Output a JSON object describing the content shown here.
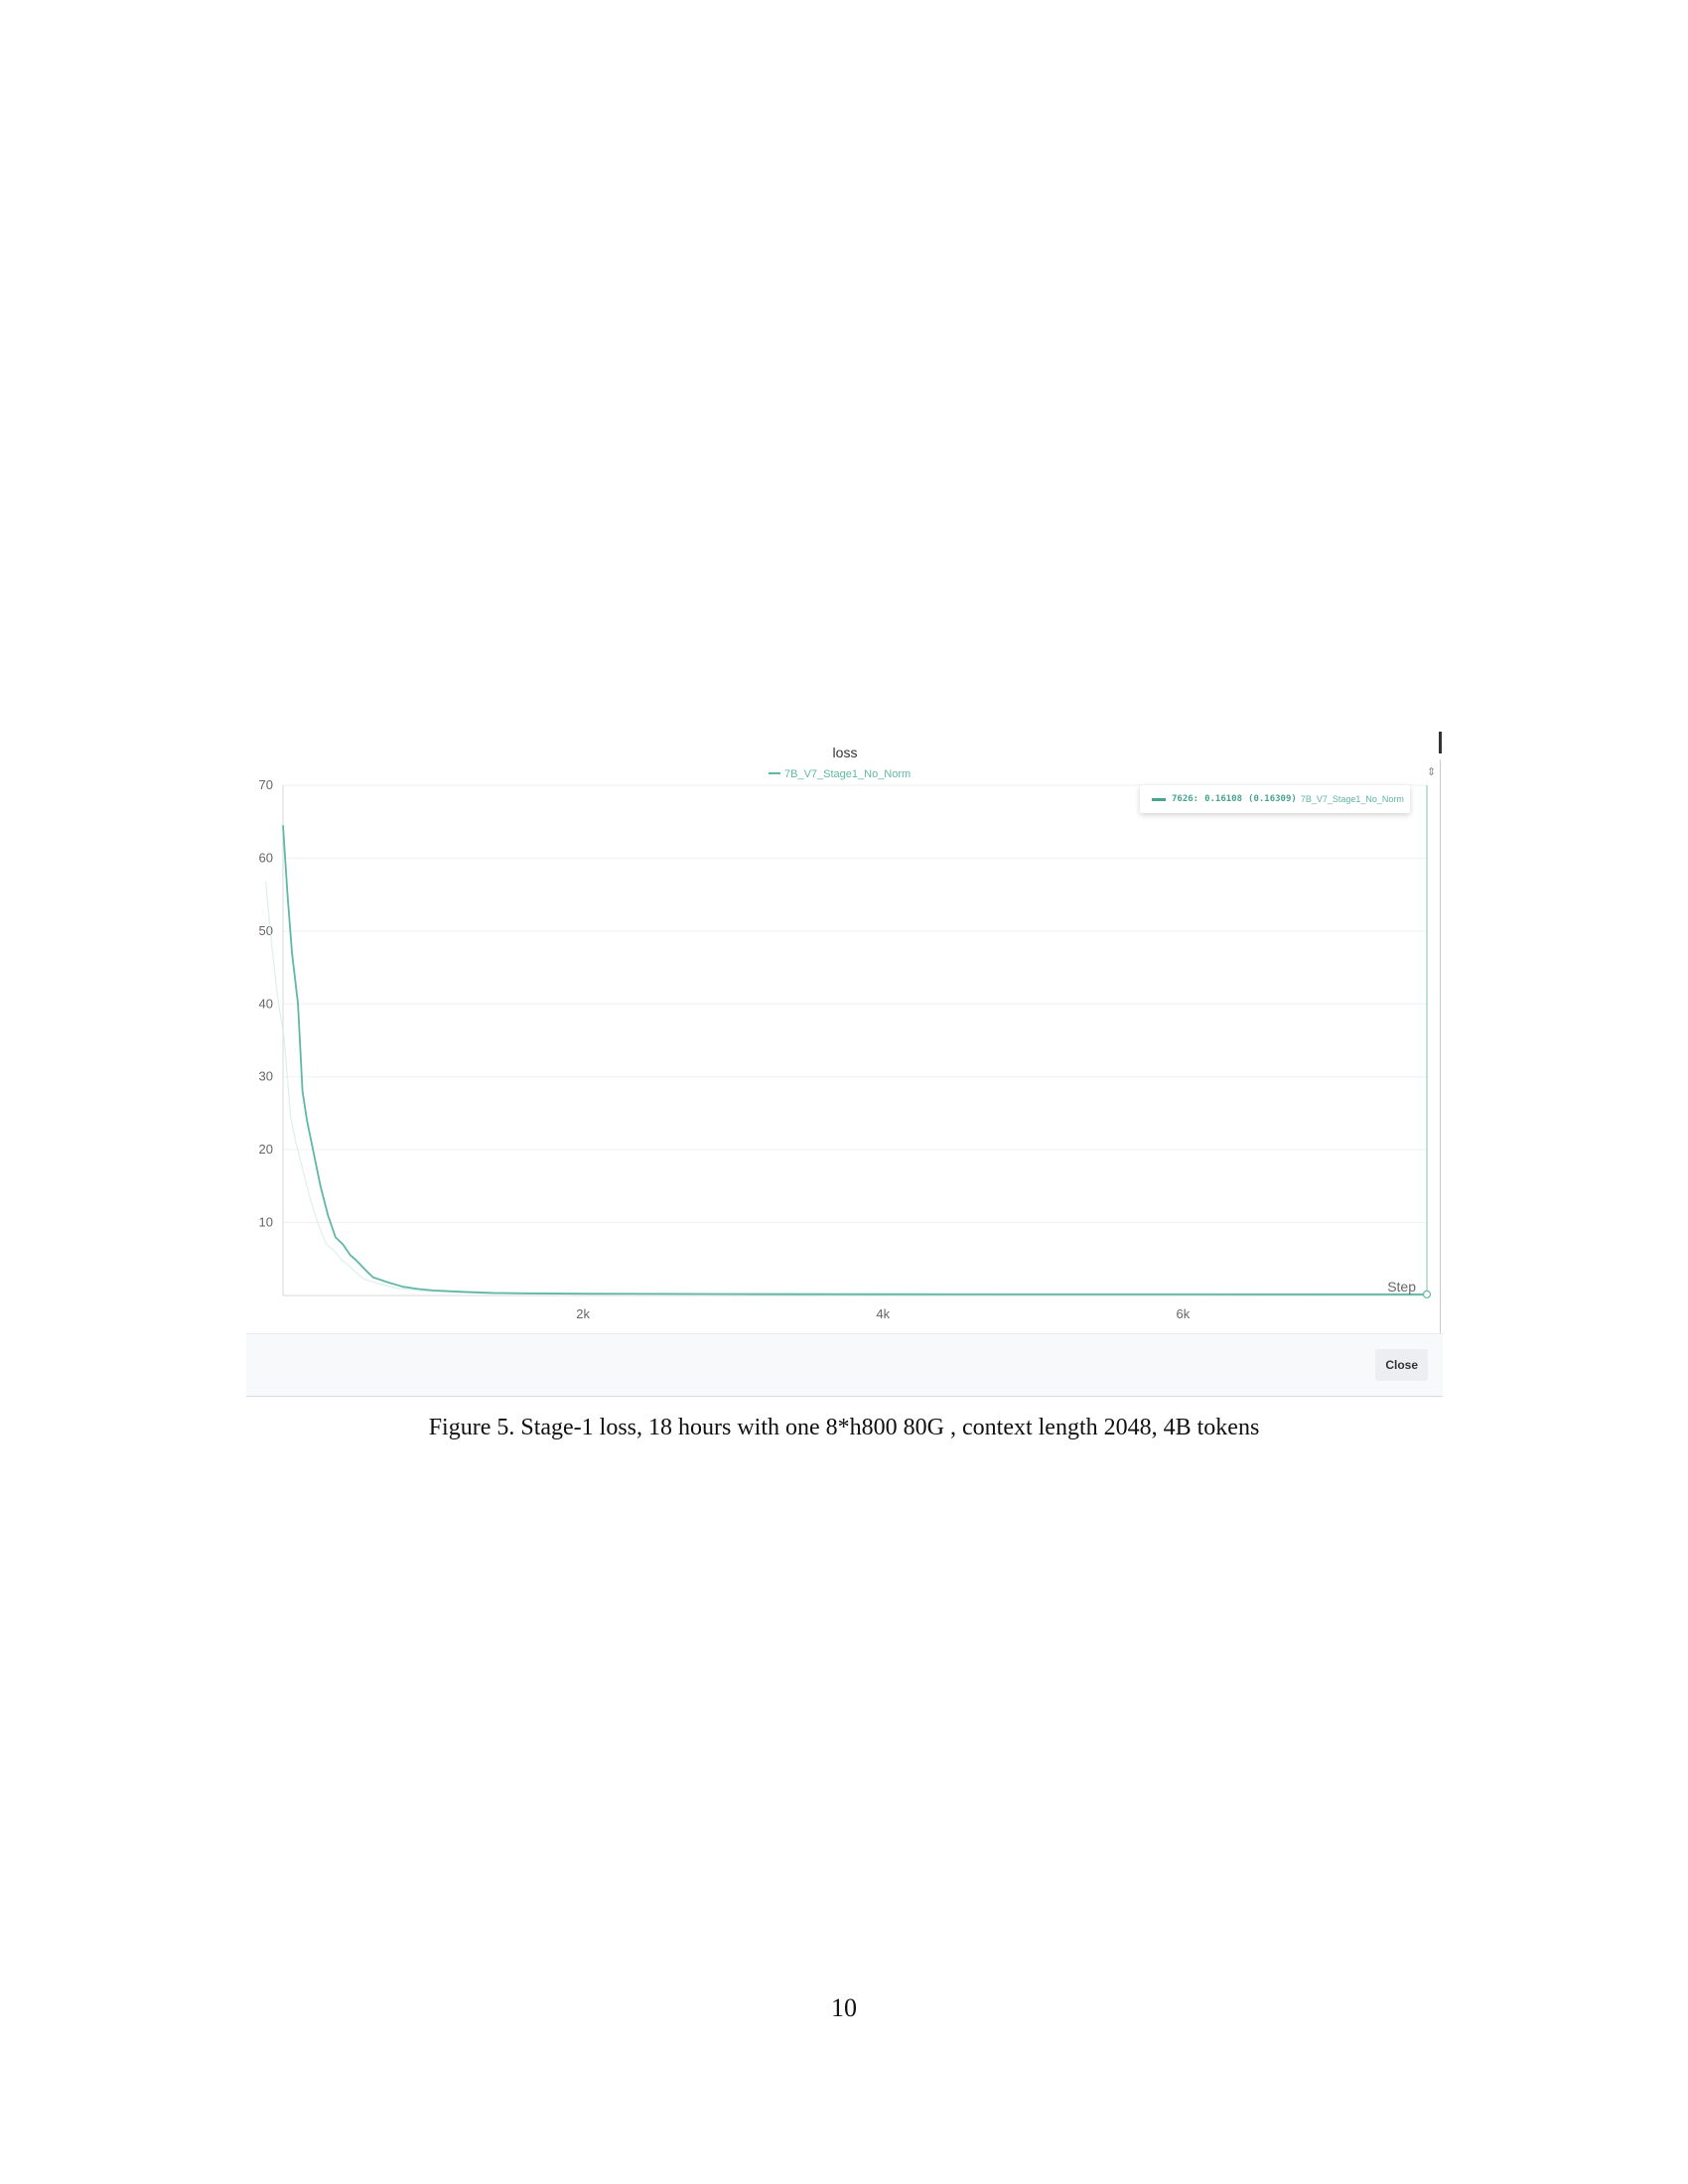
{
  "chart_data": {
    "type": "line",
    "title": "loss",
    "xlabel": "Step",
    "ylabel": "",
    "xlim": [
      0,
      7626
    ],
    "ylim": [
      0,
      70
    ],
    "x_ticks": [
      2000,
      4000,
      6000
    ],
    "x_tick_labels": [
      "2k",
      "4k",
      "6k"
    ],
    "y_ticks": [
      10,
      20,
      30,
      40,
      50,
      60,
      70
    ],
    "y_tick_labels": [
      "10",
      "20",
      "30",
      "40",
      "50",
      "60",
      "70"
    ],
    "grid": true,
    "legend_position": "top-center",
    "series": [
      {
        "name": "7B_V7_Stage1_No_Norm",
        "color": "#5fb8a4",
        "x": [
          0,
          30,
          60,
          100,
          130,
          160,
          200,
          250,
          300,
          350,
          400,
          450,
          480,
          550,
          600,
          700,
          800,
          900,
          1000,
          1200,
          1400,
          1600,
          2000,
          3000,
          4000,
          5000,
          6000,
          7000,
          7626
        ],
        "y": [
          64.5,
          55,
          47,
          40,
          28,
          24,
          20,
          15,
          11,
          8,
          7,
          5.5,
          5,
          3.5,
          2.5,
          1.8,
          1.2,
          0.9,
          0.7,
          0.5,
          0.35,
          0.3,
          0.25,
          0.2,
          0.18,
          0.17,
          0.17,
          0.16,
          0.16
        ]
      }
    ],
    "tooltip": {
      "step": "7626:",
      "value": "0.16108",
      "smoothed": "(0.16309)",
      "run": "7B_V7_Stage1_No_Norm"
    }
  },
  "ui": {
    "close_label": "Close",
    "scroll_glyph": "⇕"
  },
  "caption": "Figure 5. Stage-1 loss, 18 hours with one 8*h800 80G , context length 2048, 4B tokens",
  "page_number": "10"
}
